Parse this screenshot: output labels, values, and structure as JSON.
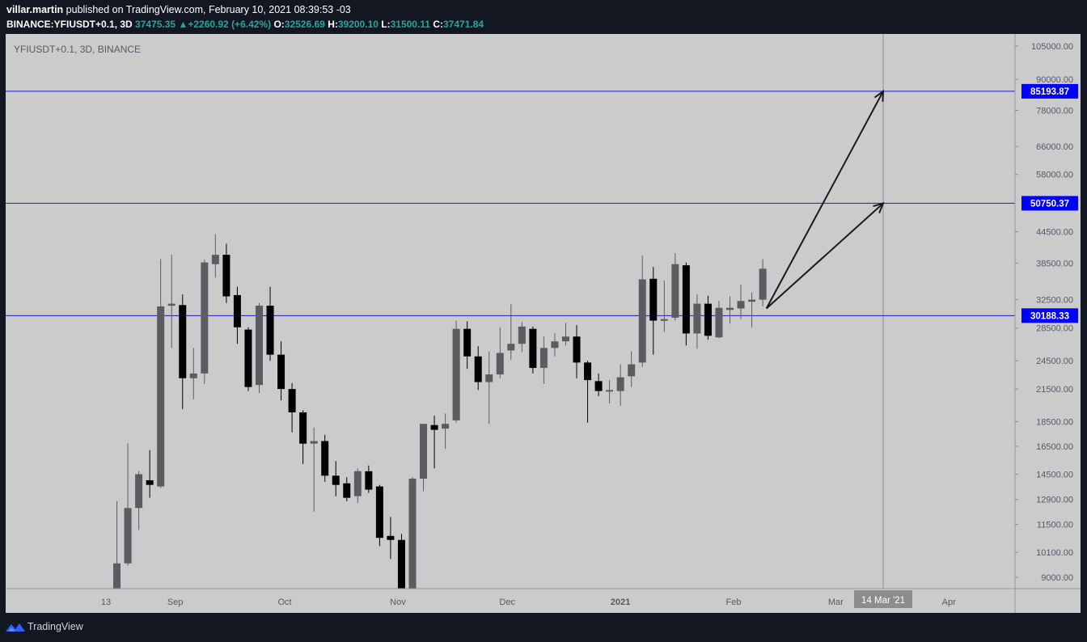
{
  "header": {
    "user": "villar.martin",
    "published_text": "published on TradingView.com, February 10, 2021 08:39:53 -03",
    "symbol": "BINANCE:YFIUSDT+0.1, 3D",
    "last_price": "37475.35",
    "change": "+2260.92 (+6.42%)",
    "open_label": "O:",
    "open": "32526.69",
    "high_label": "H:",
    "high": "39200.10",
    "low_label": "L:",
    "low": "31500.11",
    "close_label": "C:",
    "close": "37471.84"
  },
  "legend": "YFIUSDT+0.1, 3D, BINANCE",
  "footer": {
    "brand": "TradingView"
  },
  "colors": {
    "background": "#cbcbcb",
    "bull": "#5b5b62",
    "bear": "#000000",
    "hline": "#1e1ec8",
    "hline_label": "#0000ff",
    "time_marker": "#8c8c8c",
    "header_up": "#26a69a",
    "page": "#131722"
  },
  "chart_data": {
    "type": "candlestick",
    "symbol": "YFIUSDT+0.1",
    "interval": "3D",
    "exchange": "BINANCE",
    "price_scale": "log",
    "ylim": [
      8000,
      108000
    ],
    "y_ticks": [
      105000,
      90000,
      78000,
      66000,
      58000,
      44500,
      38500,
      32500,
      28500,
      24500,
      21500,
      18500,
      16500,
      14500,
      12900,
      11500,
      10100,
      9000
    ],
    "y_tick_labels": [
      "105000.00",
      "90000.00",
      "78000.00",
      "66000.00",
      "58000.00",
      "44500.00",
      "38500.00",
      "32500.00",
      "28500.00",
      "24500.00",
      "21500.00",
      "18500.00",
      "16500.00",
      "14500.00",
      "12900.00",
      "11500.00",
      "10100.00",
      "9000.00"
    ],
    "x_labels": [
      {
        "label": "13",
        "date": "2020-08-13"
      },
      {
        "label": "Sep",
        "date": "2020-09-01"
      },
      {
        "label": "Oct",
        "date": "2020-10-01"
      },
      {
        "label": "Nov",
        "date": "2020-11-01"
      },
      {
        "label": "Dec",
        "date": "2020-12-01"
      },
      {
        "label": "2021",
        "date": "2021-01-01",
        "bold": true
      },
      {
        "label": "Feb",
        "date": "2021-02-01"
      },
      {
        "label": "Mar",
        "date": "2021-03-01"
      },
      {
        "label": "Apr",
        "date": "2021-04-01"
      }
    ],
    "candles": [
      {
        "date": "2020-08-16",
        "o": 8000,
        "h": 12800,
        "l": 8000,
        "c": 9600
      },
      {
        "date": "2020-08-19",
        "o": 9600,
        "h": 16700,
        "l": 9500,
        "c": 12400
      },
      {
        "date": "2020-08-22",
        "o": 12400,
        "h": 14700,
        "l": 11200,
        "c": 14500
      },
      {
        "date": "2020-08-25",
        "o": 14100,
        "h": 16200,
        "l": 13000,
        "c": 13800
      },
      {
        "date": "2020-08-28",
        "o": 13700,
        "h": 39200,
        "l": 13600,
        "c": 31500
      },
      {
        "date": "2020-08-31",
        "o": 31600,
        "h": 40000,
        "l": 26000,
        "c": 31900
      },
      {
        "date": "2020-09-03",
        "o": 31700,
        "h": 33300,
        "l": 19600,
        "c": 22600
      },
      {
        "date": "2020-09-06",
        "o": 22600,
        "h": 26000,
        "l": 20500,
        "c": 23100
      },
      {
        "date": "2020-09-09",
        "o": 23100,
        "h": 39100,
        "l": 22000,
        "c": 38600
      },
      {
        "date": "2020-09-12",
        "o": 38300,
        "h": 44000,
        "l": 36000,
        "c": 40000
      },
      {
        "date": "2020-09-15",
        "o": 40000,
        "h": 42100,
        "l": 32000,
        "c": 33000
      },
      {
        "date": "2020-09-18",
        "o": 33200,
        "h": 34500,
        "l": 26500,
        "c": 28600
      },
      {
        "date": "2020-09-21",
        "o": 28300,
        "h": 28600,
        "l": 21300,
        "c": 21700
      },
      {
        "date": "2020-09-24",
        "o": 21900,
        "h": 32000,
        "l": 21100,
        "c": 31600
      },
      {
        "date": "2020-09-27",
        "o": 31600,
        "h": 34500,
        "l": 24500,
        "c": 25200
      },
      {
        "date": "2020-09-30",
        "o": 25200,
        "h": 26800,
        "l": 20400,
        "c": 21500
      },
      {
        "date": "2020-10-03",
        "o": 21500,
        "h": 22100,
        "l": 17600,
        "c": 19300
      },
      {
        "date": "2020-10-06",
        "o": 19300,
        "h": 19500,
        "l": 15200,
        "c": 16700
      },
      {
        "date": "2020-10-09",
        "o": 16700,
        "h": 18000,
        "l": 12200,
        "c": 16900
      },
      {
        "date": "2020-10-12",
        "o": 16900,
        "h": 17400,
        "l": 14000,
        "c": 14400
      },
      {
        "date": "2020-10-15",
        "o": 14400,
        "h": 15400,
        "l": 13100,
        "c": 13800
      },
      {
        "date": "2020-10-18",
        "o": 13900,
        "h": 14300,
        "l": 12800,
        "c": 13000
      },
      {
        "date": "2020-10-21",
        "o": 13100,
        "h": 14900,
        "l": 12700,
        "c": 14700
      },
      {
        "date": "2020-10-24",
        "o": 14700,
        "h": 15100,
        "l": 13300,
        "c": 13500
      },
      {
        "date": "2020-10-27",
        "o": 13700,
        "h": 13800,
        "l": 10400,
        "c": 10800
      },
      {
        "date": "2020-10-30",
        "o": 10900,
        "h": 11900,
        "l": 9800,
        "c": 10700
      },
      {
        "date": "2020-11-02",
        "o": 10700,
        "h": 11000,
        "l": 8000,
        "c": 8000
      },
      {
        "date": "2020-11-05",
        "o": 8000,
        "h": 14300,
        "l": 8000,
        "c": 14200
      },
      {
        "date": "2020-11-08",
        "o": 14200,
        "h": 18200,
        "l": 13400,
        "c": 18300
      },
      {
        "date": "2020-11-11",
        "o": 18200,
        "h": 19000,
        "l": 14900,
        "c": 17800
      },
      {
        "date": "2020-11-14",
        "o": 17900,
        "h": 19200,
        "l": 16300,
        "c": 18300
      },
      {
        "date": "2020-11-17",
        "o": 18600,
        "h": 29500,
        "l": 18400,
        "c": 28400
      },
      {
        "date": "2020-11-20",
        "o": 28400,
        "h": 29400,
        "l": 23600,
        "c": 25000
      },
      {
        "date": "2020-11-23",
        "o": 25000,
        "h": 26200,
        "l": 21400,
        "c": 22200
      },
      {
        "date": "2020-11-26",
        "o": 22200,
        "h": 25600,
        "l": 18300,
        "c": 23000
      },
      {
        "date": "2020-11-29",
        "o": 23000,
        "h": 28600,
        "l": 22600,
        "c": 25400
      },
      {
        "date": "2020-12-02",
        "o": 25700,
        "h": 31800,
        "l": 24600,
        "c": 26500
      },
      {
        "date": "2020-12-05",
        "o": 26500,
        "h": 29300,
        "l": 25500,
        "c": 28700
      },
      {
        "date": "2020-12-08",
        "o": 28400,
        "h": 28700,
        "l": 23100,
        "c": 23700
      },
      {
        "date": "2020-12-11",
        "o": 23700,
        "h": 27400,
        "l": 22000,
        "c": 26000
      },
      {
        "date": "2020-12-14",
        "o": 26000,
        "h": 27800,
        "l": 25000,
        "c": 26800
      },
      {
        "date": "2020-12-17",
        "o": 26800,
        "h": 29200,
        "l": 26300,
        "c": 27400
      },
      {
        "date": "2020-12-20",
        "o": 27400,
        "h": 28900,
        "l": 22600,
        "c": 24300
      },
      {
        "date": "2020-12-23",
        "o": 24300,
        "h": 24500,
        "l": 18400,
        "c": 22400
      },
      {
        "date": "2020-12-26",
        "o": 22300,
        "h": 23100,
        "l": 20800,
        "c": 21300
      },
      {
        "date": "2020-12-29",
        "o": 21300,
        "h": 22400,
        "l": 20100,
        "c": 21400
      },
      {
        "date": "2021-01-01",
        "o": 21300,
        "h": 24100,
        "l": 19900,
        "c": 22700
      },
      {
        "date": "2021-01-04",
        "o": 22800,
        "h": 25600,
        "l": 21700,
        "c": 24100
      },
      {
        "date": "2021-01-07",
        "o": 24300,
        "h": 39800,
        "l": 23800,
        "c": 35700
      },
      {
        "date": "2021-01-10",
        "o": 35800,
        "h": 37800,
        "l": 25200,
        "c": 29500
      },
      {
        "date": "2021-01-13",
        "o": 29500,
        "h": 35500,
        "l": 28000,
        "c": 29700
      },
      {
        "date": "2021-01-16",
        "o": 29900,
        "h": 40300,
        "l": 29500,
        "c": 38300
      },
      {
        "date": "2021-01-19",
        "o": 38100,
        "h": 38600,
        "l": 26300,
        "c": 27800
      },
      {
        "date": "2021-01-22",
        "o": 27800,
        "h": 33300,
        "l": 25900,
        "c": 31900
      },
      {
        "date": "2021-01-25",
        "o": 31900,
        "h": 33100,
        "l": 27000,
        "c": 27500
      },
      {
        "date": "2021-01-28",
        "o": 27300,
        "h": 32300,
        "l": 27200,
        "c": 31300
      },
      {
        "date": "2021-01-31",
        "o": 31000,
        "h": 33000,
        "l": 29100,
        "c": 31300
      },
      {
        "date": "2021-02-03",
        "o": 31200,
        "h": 34800,
        "l": 29700,
        "c": 32300
      },
      {
        "date": "2021-02-06",
        "o": 32200,
        "h": 33600,
        "l": 28600,
        "c": 32500
      },
      {
        "date": "2021-02-09",
        "o": 32500,
        "h": 39200,
        "l": 31500,
        "c": 37500
      }
    ],
    "horizontal_lines": [
      {
        "price": 85193.87,
        "label": "85193.87"
      },
      {
        "price": 50750.37,
        "label": "50750.37"
      },
      {
        "price": 30188.33,
        "label": "30188.33"
      }
    ],
    "arrows": [
      {
        "from": {
          "date": "2021-02-10",
          "price": 31200
        },
        "to": {
          "date": "2021-03-14",
          "price": 85193.87
        }
      },
      {
        "from": {
          "date": "2021-02-10",
          "price": 31200
        },
        "to": {
          "date": "2021-03-14",
          "price": 50750.37
        }
      }
    ],
    "time_marker": {
      "date": "2021-03-14",
      "label": "14 Mar '21"
    }
  }
}
